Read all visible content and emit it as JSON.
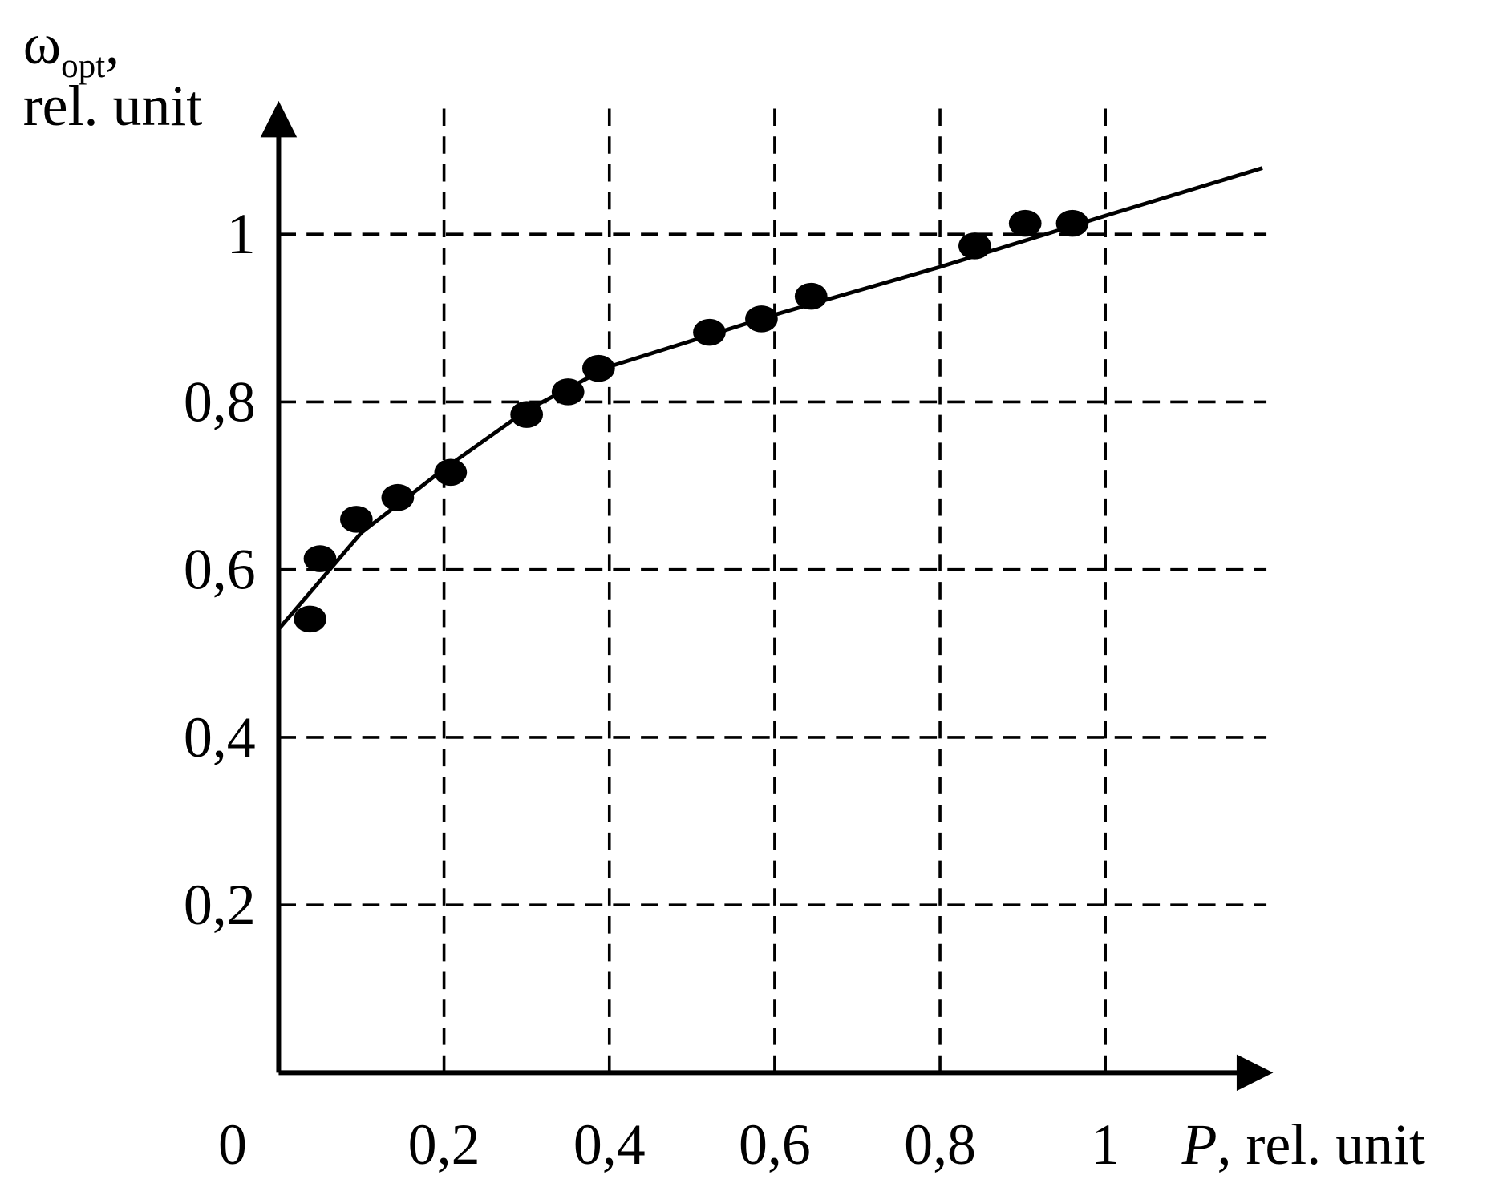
{
  "chart_data": {
    "type": "scatter",
    "x_label": {
      "symbol": "P",
      "text": ", rel. unit"
    },
    "y_label": {
      "symbol": "ω",
      "subscript": "opt",
      "suffix": ",",
      "unit": "rel. unit"
    },
    "x": [
      0.038,
      0.05,
      0.094,
      0.144,
      0.208,
      0.3,
      0.35,
      0.387,
      0.521,
      0.584,
      0.644,
      0.842,
      0.903,
      0.96
    ],
    "values": [
      0.541,
      0.613,
      0.66,
      0.686,
      0.716,
      0.785,
      0.812,
      0.84,
      0.883,
      0.899,
      0.926,
      0.986,
      1.013,
      1.013
    ],
    "color": "#000000",
    "fit": {
      "x": [
        0,
        0.1,
        0.2,
        0.3,
        0.4,
        0.6,
        0.8,
        1,
        1.19
      ],
      "values": [
        0.529,
        0.644,
        0.72,
        0.79,
        0.842,
        0.904,
        0.961,
        1.022,
        1.079
      ]
    },
    "xlim": [
      0,
      1.203
    ],
    "ylim": [
      0,
      1.159
    ],
    "xticks": [
      {
        "value": 0,
        "label": "0"
      },
      {
        "value": 0.2,
        "label": "0,2"
      },
      {
        "value": 0.4,
        "label": "0,4"
      },
      {
        "value": 0.6,
        "label": "0,6"
      },
      {
        "value": 0.8,
        "label": "0,8"
      },
      1
    ],
    "yticks": [
      {
        "value": 0.2,
        "label": "0,2"
      },
      {
        "value": 0.4,
        "label": "0,4"
      },
      {
        "value": 0.6,
        "label": "0,6"
      },
      {
        "value": 0.8,
        "label": "0,8"
      },
      1
    ],
    "grid": true
  }
}
